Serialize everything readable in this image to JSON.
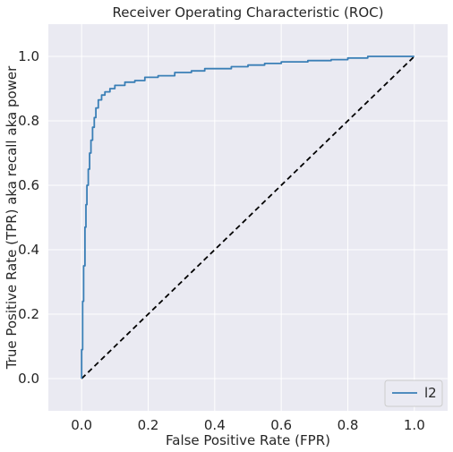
{
  "chart_data": {
    "type": "line",
    "title": "Receiver Operating Characteristic (ROC)",
    "xlabel": "False Positive Rate (FPR)",
    "ylabel": "True Positive Rate (TPR) aka recall aka power",
    "xlim": [
      -0.1,
      1.1
    ],
    "ylim": [
      -0.1,
      1.1
    ],
    "xticks": [
      "0.0",
      "0.2",
      "0.4",
      "0.6",
      "0.8",
      "1.0"
    ],
    "yticks": [
      "0.0",
      "0.2",
      "0.4",
      "0.6",
      "0.8",
      "1.0"
    ],
    "grid": true,
    "legend_position": "lower right",
    "series": [
      {
        "name": "l2",
        "color": "#3a7fb6",
        "x": [
          0,
          0,
          0.003,
          0.003,
          0.006,
          0.006,
          0.01,
          0.01,
          0.013,
          0.013,
          0.016,
          0.016,
          0.02,
          0.02,
          0.024,
          0.024,
          0.028,
          0.028,
          0.033,
          0.033,
          0.038,
          0.038,
          0.043,
          0.043,
          0.05,
          0.05,
          0.06,
          0.06,
          0.07,
          0.07,
          0.085,
          0.085,
          0.1,
          0.1,
          0.13,
          0.13,
          0.16,
          0.16,
          0.19,
          0.19,
          0.23,
          0.23,
          0.28,
          0.28,
          0.33,
          0.33,
          0.37,
          0.37,
          0.45,
          0.45,
          0.5,
          0.5,
          0.55,
          0.55,
          0.6,
          0.6,
          0.68,
          0.68,
          0.75,
          0.75,
          0.8,
          0.8,
          0.86,
          0.86,
          1.0
        ],
        "y": [
          0,
          0.09,
          0.09,
          0.24,
          0.24,
          0.35,
          0.35,
          0.47,
          0.47,
          0.54,
          0.54,
          0.6,
          0.6,
          0.65,
          0.65,
          0.7,
          0.7,
          0.74,
          0.74,
          0.78,
          0.78,
          0.81,
          0.81,
          0.84,
          0.84,
          0.865,
          0.865,
          0.88,
          0.88,
          0.89,
          0.89,
          0.9,
          0.9,
          0.91,
          0.91,
          0.92,
          0.92,
          0.925,
          0.925,
          0.935,
          0.935,
          0.94,
          0.94,
          0.95,
          0.95,
          0.955,
          0.955,
          0.962,
          0.962,
          0.968,
          0.968,
          0.973,
          0.973,
          0.978,
          0.978,
          0.983,
          0.983,
          0.987,
          0.987,
          0.99,
          0.99,
          0.995,
          0.995,
          1.0,
          1.0
        ]
      }
    ],
    "diagonal": {
      "x": [
        0,
        1
      ],
      "y": [
        0,
        1
      ],
      "color": "#000000",
      "style": "dashed"
    }
  }
}
